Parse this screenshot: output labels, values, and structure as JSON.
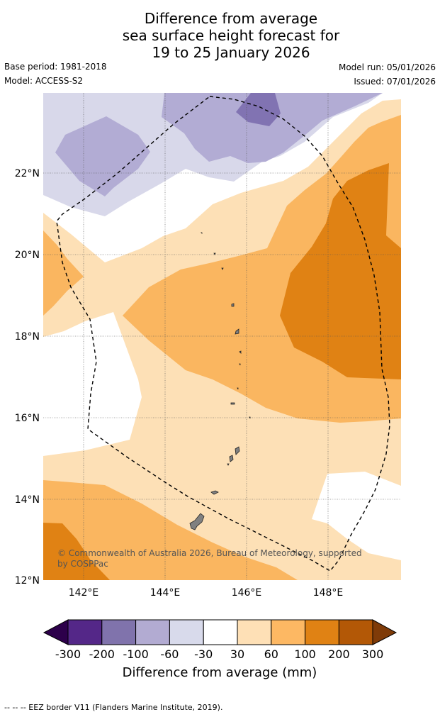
{
  "title_lines": [
    "Difference from average",
    "sea surface height forecast for",
    "19 to 25 January 2026"
  ],
  "meta": {
    "base_period": "Base period: 1981-2018",
    "model": "Model: ACCESS-S2",
    "model_run": "Model run: 05/01/2026",
    "issued": "Issued: 07/01/2026"
  },
  "map": {
    "lon_labels": [
      "142°E",
      "144°E",
      "146°E",
      "148°E"
    ],
    "lat_labels": [
      "22°N",
      "20°N",
      "18°N",
      "16°N",
      "14°N",
      "12°N"
    ],
    "copyright_lines": [
      "© Commonwealth of Australia 2026, Bureau of Meteorology, supported",
      "by COSPPac"
    ],
    "colors": {
      "lev_m60": "#d8d8ea",
      "lev_m100": "#b2acd4",
      "lev_m200": "#8173b2",
      "lev_30": "#fde0b6",
      "lev_60": "#fab660",
      "lev_100": "#e08214",
      "land": "#808080"
    }
  },
  "colorbar": {
    "tick_labels": [
      "-300",
      "-200",
      "-100",
      "-60",
      "-30",
      "30",
      "60",
      "100",
      "200",
      "300"
    ],
    "title": "Difference from average (mm)",
    "colors": [
      "#2d004b",
      "#542788",
      "#8073ac",
      "#b2abd2",
      "#d8daeb",
      "#ffffff",
      "#fee0b6",
      "#fdb863",
      "#e08214",
      "#b35806",
      "#7f3b08"
    ]
  },
  "footer": "--  --  -- EEZ border V11 (Flanders Marine Institute, 2019)."
}
